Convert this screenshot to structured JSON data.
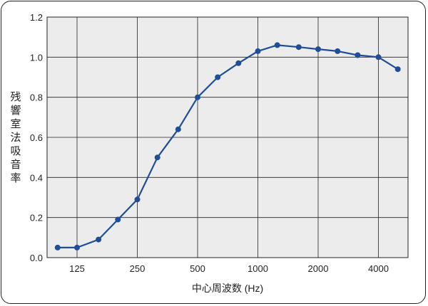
{
  "chart_data": {
    "type": "line",
    "title": "",
    "xlabel": "中心周波数 (Hz)",
    "ylabel": "残響室法吸音率",
    "xscale": "log",
    "x_ticks": [
      125,
      250,
      500,
      1000,
      2000,
      4000
    ],
    "x_tick_labels": [
      "125",
      "250",
      "500",
      "1000",
      "2000",
      "4000"
    ],
    "ylim": [
      0,
      1.2
    ],
    "y_ticks": [
      0.0,
      0.2,
      0.4,
      0.6,
      0.8,
      1.0,
      1.2
    ],
    "y_tick_labels": [
      "0.0",
      "0.2",
      "0.4",
      "0.6",
      "0.8",
      "1.0",
      "1.2"
    ],
    "grid": true,
    "series": [
      {
        "color": "#1f4e96",
        "x": [
          100,
          125,
          160,
          200,
          250,
          315,
          400,
          500,
          630,
          800,
          1000,
          1250,
          1600,
          2000,
          2500,
          3150,
          4000,
          5000
        ],
        "y": [
          0.05,
          0.05,
          0.09,
          0.19,
          0.29,
          0.5,
          0.64,
          0.8,
          0.9,
          0.97,
          1.03,
          1.06,
          1.05,
          1.04,
          1.03,
          1.01,
          1.0,
          0.94
        ]
      }
    ]
  }
}
